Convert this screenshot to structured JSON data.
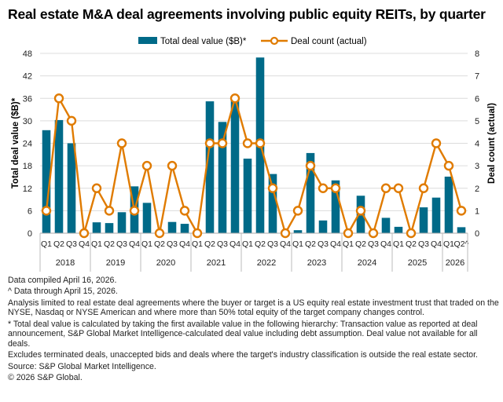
{
  "chart_data": {
    "type": "bar+line",
    "title": "Real estate M&A deal agreements involving public equity REITs, by quarter",
    "categories": [
      "Q1",
      "Q2",
      "Q3",
      "Q4",
      "Q1",
      "Q2",
      "Q3",
      "Q4",
      "Q1",
      "Q2",
      "Q3",
      "Q4",
      "Q1",
      "Q2",
      "Q3",
      "Q4",
      "Q1",
      "Q2",
      "Q3",
      "Q4",
      "Q1",
      "Q2",
      "Q3",
      "Q4",
      "Q1",
      "Q2",
      "Q3",
      "Q4",
      "Q1",
      "Q2",
      "Q3",
      "Q4",
      "Q1",
      "Q2^"
    ],
    "years": [
      "2018",
      "2019",
      "2020",
      "2021",
      "2022",
      "2023",
      "2024",
      "2025",
      "2026"
    ],
    "series": [
      {
        "name": "Total deal value ($B)*",
        "type": "bar",
        "axis": "left",
        "color": "#006a88",
        "values": [
          27.5,
          30.2,
          24.0,
          0,
          2.9,
          2.7,
          5.6,
          12.5,
          8.1,
          0,
          3.0,
          2.5,
          0,
          35.2,
          29.7,
          35.8,
          19.9,
          46.9,
          15.8,
          0,
          0.8,
          21.4,
          3.4,
          14.1,
          0,
          10.0,
          0,
          4.1,
          1.7,
          0,
          6.9,
          9.5,
          15.1,
          1.6
        ]
      },
      {
        "name": "Deal count (actual)",
        "type": "line",
        "axis": "right",
        "color": "#e07b00",
        "values": [
          1,
          6,
          5,
          0,
          2,
          1,
          4,
          1,
          3,
          0,
          3,
          1,
          0,
          4,
          4,
          6,
          4,
          4,
          2,
          0,
          1,
          3,
          2,
          2,
          0,
          1,
          0,
          2,
          2,
          0,
          2,
          4,
          3,
          1
        ]
      }
    ],
    "ylabel": "Total deal value ($B)*",
    "y2label": "Deal count (actual)",
    "ylim": [
      0,
      48
    ],
    "yticks": [
      "0",
      "6",
      "12",
      "18",
      "24",
      "30",
      "36",
      "42",
      "48"
    ],
    "y2lim": [
      0,
      8
    ],
    "y2ticks": [
      "0",
      "1",
      "2",
      "3",
      "4",
      "5",
      "6",
      "7",
      "8"
    ],
    "grid": true,
    "legend": "top-center"
  },
  "notes": [
    "Data compiled April 16, 2026.",
    "^ Data through April 15, 2026.",
    "Analysis limited to real estate deal agreements where the buyer or target is a US equity real estate investment trust that traded on the NYSE, Nasdaq or NYSE American and where more than 50% total equity of the target company changes control.",
    "* Total deal value is calculated by taking the first available value in the following hierarchy: Transaction value as reported at deal announcement, S&P Global Market Intelligence-calculated deal value including debt assumption. Deal value not available for all deals.",
    "Excludes terminated deals, unaccepted bids and deals where the target's industry classification is outside the real estate sector.",
    "Source: S&P Global Market Intelligence.",
    "© 2026 S&P Global."
  ]
}
